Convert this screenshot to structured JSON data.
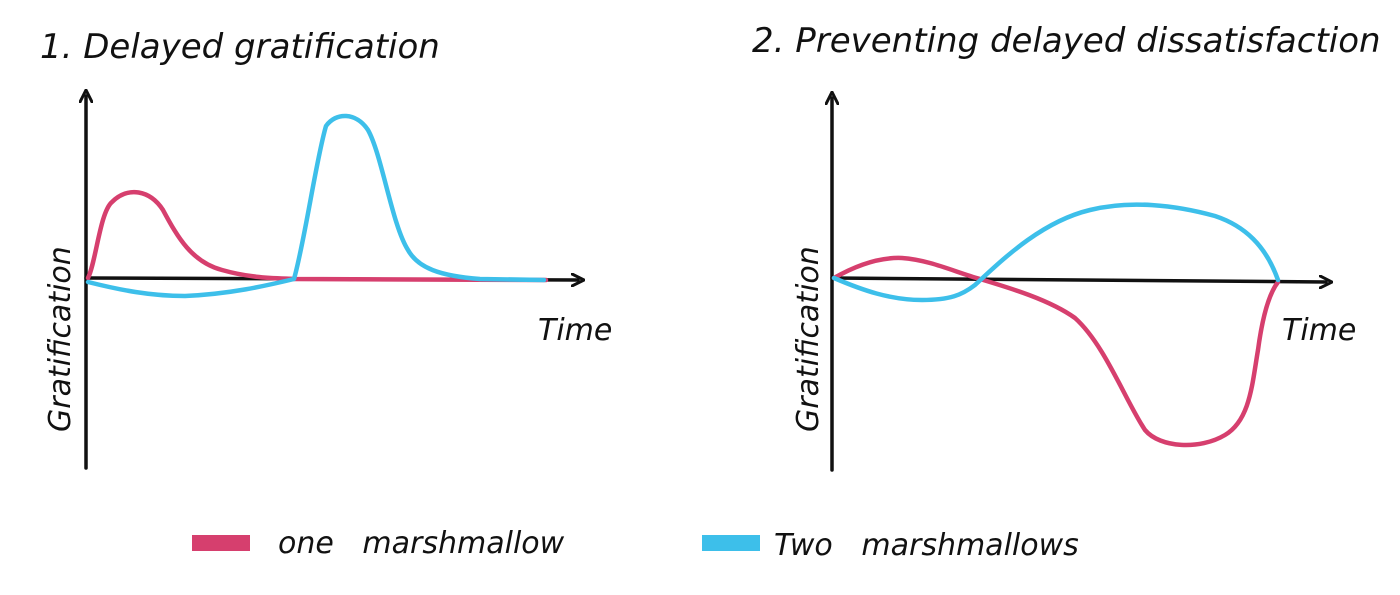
{
  "colors": {
    "one": "#d63f6e",
    "two": "#3dbfea",
    "ink": "#111111"
  },
  "panel1": {
    "title": "1. Delayed gratification",
    "ylabel": "Gratification",
    "xlabel": "Time"
  },
  "panel2": {
    "title": "2. Preventing delayed dissatisfaction",
    "ylabel": "Gratification",
    "xlabel": "Time"
  },
  "legend": {
    "one_label": "one   marshmallow",
    "two_label": "Two   marshmallows"
  }
}
